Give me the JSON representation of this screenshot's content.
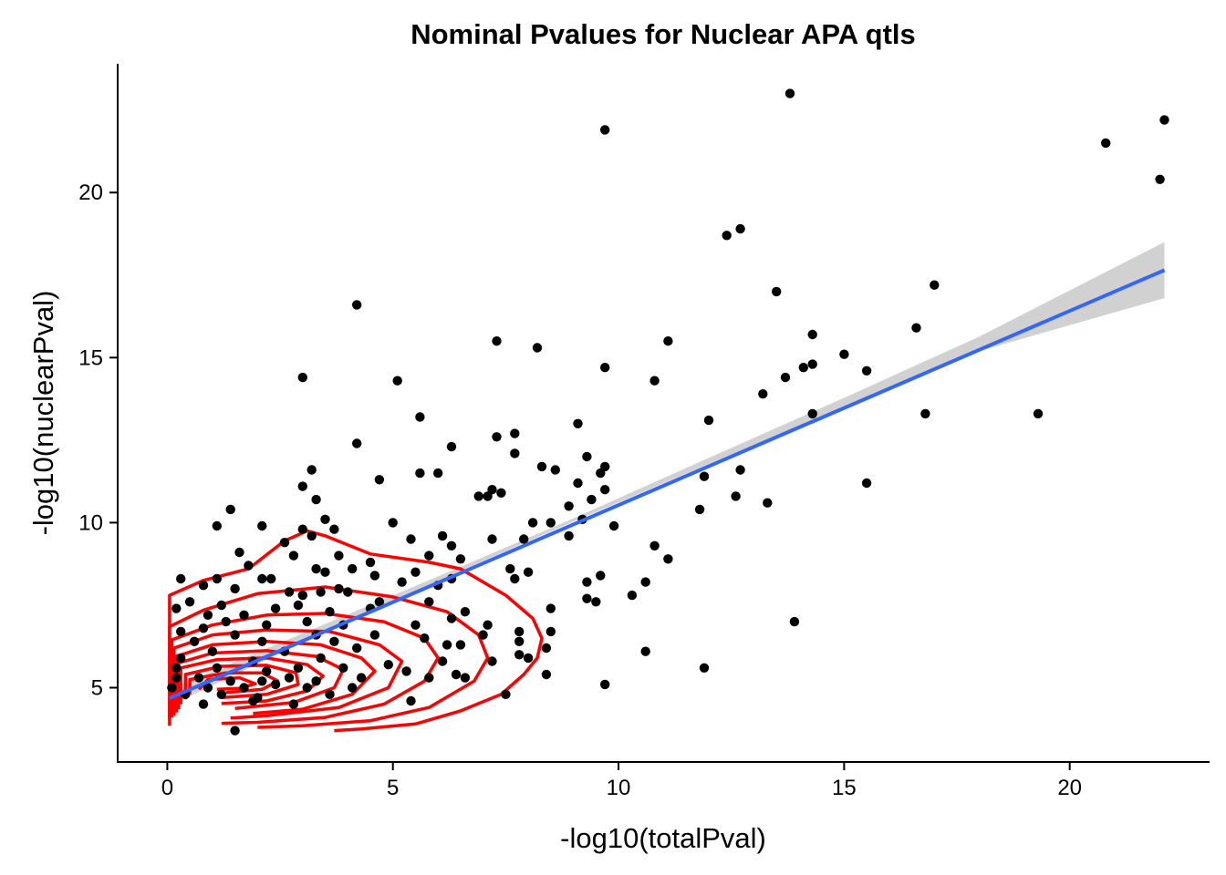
{
  "chart_data": {
    "type": "scatter",
    "title": "Nominal Pvalues for Nuclear APA qtls",
    "xlabel": "-log10(totalPval)",
    "ylabel": "-log10(nuclearPval)",
    "xlim": [
      -1.1,
      23.1
    ],
    "ylim": [
      2.75,
      23.9
    ],
    "xticks": [
      0,
      5,
      10,
      15,
      20
    ],
    "yticks": [
      5,
      10,
      15,
      20
    ],
    "grid": false,
    "legend": "none",
    "colors": {
      "points": "#000000",
      "fit_line": "#3366FF",
      "confidence_band": "#CCCCCC",
      "density_contours": "#FF0000"
    },
    "series": [
      {
        "type": "scatter",
        "points": [
          [
            13.8,
            23
          ],
          [
            9.7,
            21.9
          ],
          [
            22.1,
            22.2
          ],
          [
            20.8,
            21.5
          ],
          [
            22,
            20.4
          ],
          [
            12.7,
            18.9
          ],
          [
            12.4,
            18.7
          ],
          [
            17,
            17.2
          ],
          [
            13.5,
            17
          ],
          [
            4.2,
            16.6
          ],
          [
            16.6,
            15.9
          ],
          [
            14.3,
            15.7
          ],
          [
            7.3,
            15.5
          ],
          [
            11.1,
            15.5
          ],
          [
            8.2,
            15.3
          ],
          [
            15,
            15.1
          ],
          [
            14.3,
            14.8
          ],
          [
            14.1,
            14.7
          ],
          [
            9.7,
            14.7
          ],
          [
            15.5,
            14.6
          ],
          [
            13.7,
            14.4
          ],
          [
            3,
            14.4
          ],
          [
            5.1,
            14.3
          ],
          [
            10.8,
            14.3
          ],
          [
            13.2,
            13.9
          ],
          [
            5.6,
            13.2
          ],
          [
            14.3,
            13.3
          ],
          [
            16.8,
            13.3
          ],
          [
            19.3,
            13.3
          ],
          [
            12,
            13.1
          ],
          [
            9.1,
            13
          ],
          [
            7.7,
            12.7
          ],
          [
            7.3,
            12.6
          ],
          [
            4.2,
            12.4
          ],
          [
            6.3,
            12.3
          ],
          [
            7.7,
            12.1
          ],
          [
            9.3,
            12
          ],
          [
            8.3,
            11.7
          ],
          [
            9.7,
            11.7
          ],
          [
            3.2,
            11.6
          ],
          [
            8.6,
            11.6
          ],
          [
            9.6,
            11.5
          ],
          [
            5.6,
            11.5
          ],
          [
            6,
            11.5
          ],
          [
            12.7,
            11.6
          ],
          [
            11.9,
            11.4
          ],
          [
            4.7,
            11.3
          ],
          [
            9.1,
            11.2
          ],
          [
            15.5,
            11.2
          ],
          [
            3,
            11.1
          ],
          [
            7.2,
            11
          ],
          [
            9.7,
            11
          ],
          [
            7.4,
            10.9
          ],
          [
            12.6,
            10.8
          ],
          [
            6.9,
            10.8
          ],
          [
            7.1,
            10.8
          ],
          [
            3.3,
            10.7
          ],
          [
            9.4,
            10.7
          ],
          [
            8.9,
            10.5
          ],
          [
            11.8,
            10.4
          ],
          [
            1.4,
            10.4
          ],
          [
            13.3,
            10.6
          ],
          [
            3.5,
            10.1
          ],
          [
            5,
            10
          ],
          [
            8.5,
            10
          ],
          [
            8.1,
            10
          ],
          [
            9.2,
            10.1
          ],
          [
            9.9,
            9.9
          ],
          [
            1.1,
            9.9
          ],
          [
            2.1,
            9.9
          ],
          [
            3.7,
            9.8
          ],
          [
            3,
            9.8
          ],
          [
            3.2,
            9.6
          ],
          [
            6.1,
            9.6
          ],
          [
            7.2,
            9.5
          ],
          [
            7.9,
            9.5
          ],
          [
            8.9,
            9.6
          ],
          [
            2.6,
            9.4
          ],
          [
            5.4,
            9.5
          ],
          [
            6.3,
            9.3
          ],
          [
            10.8,
            9.3
          ],
          [
            2.8,
            9
          ],
          [
            1.6,
            9.1
          ],
          [
            3.8,
            9
          ],
          [
            5.8,
            9
          ],
          [
            4.5,
            8.8
          ],
          [
            11.1,
            8.9
          ],
          [
            6.5,
            8.9
          ],
          [
            1.8,
            8.7
          ],
          [
            3.3,
            8.6
          ],
          [
            4.1,
            8.6
          ],
          [
            5.5,
            8.5
          ],
          [
            9.6,
            8.4
          ],
          [
            3.5,
            8.5
          ],
          [
            8,
            8.5
          ],
          [
            1.1,
            8.3
          ],
          [
            0.3,
            8.3
          ],
          [
            2.1,
            8.3
          ],
          [
            2.3,
            8.3
          ],
          [
            4.6,
            8.4
          ],
          [
            6.3,
            8.3
          ],
          [
            7.7,
            8.3
          ],
          [
            9.3,
            8.2
          ],
          [
            10.6,
            8.2
          ],
          [
            0.8,
            8.1
          ],
          [
            3.8,
            8
          ],
          [
            1.5,
            8
          ],
          [
            2.7,
            7.9
          ],
          [
            3.4,
            7.9
          ],
          [
            4,
            7.9
          ],
          [
            5.2,
            8.2
          ],
          [
            6,
            8.1
          ],
          [
            7.6,
            8.6
          ],
          [
            9.3,
            7.7
          ],
          [
            10.3,
            7.8
          ],
          [
            3,
            7.8
          ],
          [
            4.7,
            7.6
          ],
          [
            0.5,
            7.6
          ],
          [
            1.2,
            7.5
          ],
          [
            2.9,
            7.5
          ],
          [
            5.8,
            7.6
          ],
          [
            9.5,
            7.6
          ],
          [
            0.2,
            7.4
          ],
          [
            0.9,
            7.2
          ],
          [
            1.7,
            7.2
          ],
          [
            2.4,
            7.4
          ],
          [
            3.6,
            7.3
          ],
          [
            4.5,
            7.4
          ],
          [
            6.6,
            7.3
          ],
          [
            8.5,
            7.4
          ],
          [
            1.3,
            7
          ],
          [
            3.1,
            7
          ],
          [
            5.5,
            6.9
          ],
          [
            0.8,
            6.8
          ],
          [
            2.2,
            6.9
          ],
          [
            3.9,
            6.9
          ],
          [
            6.3,
            7.1
          ],
          [
            7.1,
            6.9
          ],
          [
            8.5,
            6.7
          ],
          [
            13.9,
            7
          ],
          [
            0.3,
            6.7
          ],
          [
            1.5,
            6.6
          ],
          [
            3.3,
            6.6
          ],
          [
            4.6,
            6.6
          ],
          [
            5.7,
            6.5
          ],
          [
            7,
            6.6
          ],
          [
            7.8,
            6.7
          ],
          [
            0.6,
            6.4
          ],
          [
            2.1,
            6.4
          ],
          [
            3.7,
            6.4
          ],
          [
            6.2,
            6.3
          ],
          [
            7.8,
            6.4
          ],
          [
            8.4,
            6.2
          ],
          [
            1,
            6.1
          ],
          [
            2.6,
            6.1
          ],
          [
            4.2,
            6.2
          ],
          [
            6.5,
            6.3
          ],
          [
            10.6,
            6.1
          ],
          [
            7.8,
            6
          ],
          [
            0.3,
            5.9
          ],
          [
            1.9,
            5.8
          ],
          [
            3.4,
            5.9
          ],
          [
            4.9,
            5.7
          ],
          [
            6.1,
            5.8
          ],
          [
            7.2,
            5.8
          ],
          [
            8,
            5.9
          ],
          [
            0.2,
            5.6
          ],
          [
            1.1,
            5.6
          ],
          [
            2.2,
            5.5
          ],
          [
            2.9,
            5.6
          ],
          [
            3.9,
            5.6
          ],
          [
            5.3,
            5.5
          ],
          [
            6.4,
            5.4
          ],
          [
            8.4,
            5.4
          ],
          [
            11.9,
            5.6
          ],
          [
            0.2,
            5.3
          ],
          [
            0.7,
            5.3
          ],
          [
            1.4,
            5.2
          ],
          [
            2.1,
            5.2
          ],
          [
            2.7,
            5.3
          ],
          [
            3.3,
            5.2
          ],
          [
            4.3,
            5.3
          ],
          [
            5.8,
            5.3
          ],
          [
            6.6,
            5.3
          ],
          [
            0.1,
            5
          ],
          [
            0.9,
            5
          ],
          [
            1.7,
            5
          ],
          [
            2.4,
            5.1
          ],
          [
            3.1,
            5
          ],
          [
            4.1,
            5
          ],
          [
            9.7,
            5.1
          ],
          [
            0.4,
            4.8
          ],
          [
            1.2,
            4.8
          ],
          [
            2,
            4.7
          ],
          [
            3.6,
            4.8
          ],
          [
            5.4,
            4.6
          ],
          [
            7.5,
            4.8
          ],
          [
            0.8,
            4.5
          ],
          [
            1.9,
            4.6
          ],
          [
            2.8,
            4.5
          ],
          [
            1.5,
            3.7
          ]
        ]
      },
      {
        "type": "line",
        "name": "",
        "x": [
          0.05,
          22.1
        ],
        "y": [
          4.68,
          17.65
        ]
      },
      {
        "type": "band",
        "x": [
          0.05,
          4,
          6.5,
          9,
          12,
          15,
          18,
          22.1
        ],
        "lower": [
          4.45,
          7.02,
          8.54,
          10.03,
          11.78,
          13.5,
          15.2,
          16.8
        ],
        "upper": [
          4.95,
          7.22,
          8.66,
          10.13,
          11.96,
          13.78,
          15.64,
          18.5
        ]
      }
    ],
    "contours": [
      [
        [
          0.05,
          3.85
        ],
        [
          0.05,
          7.8
        ],
        [
          0.8,
          8.25
        ],
        [
          1.8,
          8.6
        ],
        [
          2.6,
          9.45
        ],
        [
          3.1,
          9.75
        ],
        [
          3.5,
          9.6
        ],
        [
          4.5,
          9.05
        ],
        [
          5.8,
          8.8
        ],
        [
          6.5,
          8.6
        ],
        [
          7.5,
          7.8
        ],
        [
          8.1,
          7.1
        ],
        [
          8.3,
          6.5
        ],
        [
          8.2,
          5.9
        ],
        [
          7.9,
          5.4
        ],
        [
          7.4,
          4.8
        ],
        [
          6.5,
          4.3
        ],
        [
          5.5,
          3.9
        ],
        [
          4.3,
          3.75
        ],
        [
          3.7,
          3.7
        ]
      ],
      [
        [
          0.05,
          4.05
        ],
        [
          0.05,
          6.85
        ],
        [
          0.8,
          7.35
        ],
        [
          2,
          7.85
        ],
        [
          3.5,
          8.05
        ],
        [
          5,
          7.75
        ],
        [
          6.2,
          7.3
        ],
        [
          6.9,
          6.6
        ],
        [
          7.1,
          5.9
        ],
        [
          6.8,
          5.2
        ],
        [
          5.8,
          4.4
        ],
        [
          4.5,
          4
        ],
        [
          3,
          3.85
        ],
        [
          2,
          3.8
        ]
      ],
      [
        [
          0.1,
          4.1
        ],
        [
          0.1,
          6.45
        ],
        [
          1,
          6.9
        ],
        [
          2.2,
          7.2
        ],
        [
          3.5,
          7.25
        ],
        [
          4.8,
          7.0
        ],
        [
          5.7,
          6.5
        ],
        [
          6.0,
          5.9
        ],
        [
          5.7,
          5.2
        ],
        [
          4.8,
          4.5
        ],
        [
          3.5,
          4.1
        ],
        [
          2,
          3.95
        ],
        [
          1.2,
          3.92
        ]
      ],
      [
        [
          0.15,
          4.15
        ],
        [
          0.15,
          6.2
        ],
        [
          1,
          6.6
        ],
        [
          2.2,
          6.75
        ],
        [
          3.6,
          6.7
        ],
        [
          4.7,
          6.3
        ],
        [
          5.2,
          5.8
        ],
        [
          4.9,
          5.0
        ],
        [
          3.8,
          4.4
        ],
        [
          2.2,
          4.15
        ],
        [
          1.4,
          4.08
        ]
      ],
      [
        [
          0.2,
          4.25
        ],
        [
          0.2,
          5.95
        ],
        [
          1,
          6.3
        ],
        [
          2.2,
          6.4
        ],
        [
          3.4,
          6.3
        ],
        [
          4.3,
          5.9
        ],
        [
          4.6,
          5.5
        ],
        [
          4.1,
          4.8
        ],
        [
          3,
          4.35
        ],
        [
          1.9,
          4.22
        ]
      ],
      [
        [
          0.25,
          4.35
        ],
        [
          0.25,
          5.75
        ],
        [
          1,
          6.05
        ],
        [
          2.2,
          6.12
        ],
        [
          3.3,
          5.95
        ],
        [
          3.9,
          5.55
        ],
        [
          3.7,
          5.0
        ],
        [
          2.8,
          4.55
        ],
        [
          1.5,
          4.37
        ]
      ],
      [
        [
          0.3,
          4.5
        ],
        [
          0.3,
          5.6
        ],
        [
          1.1,
          5.85
        ],
        [
          2.2,
          5.9
        ],
        [
          3.1,
          5.7
        ],
        [
          3.45,
          5.35
        ],
        [
          3.1,
          4.9
        ],
        [
          2.2,
          4.6
        ],
        [
          1.2,
          4.52
        ]
      ],
      [
        [
          0.4,
          4.65
        ],
        [
          0.4,
          5.4
        ],
        [
          1.2,
          5.65
        ],
        [
          2.2,
          5.68
        ],
        [
          2.85,
          5.45
        ],
        [
          2.9,
          5.1
        ],
        [
          2.2,
          4.8
        ],
        [
          1.2,
          4.7
        ]
      ],
      [
        [
          0.5,
          4.8
        ],
        [
          0.5,
          5.25
        ],
        [
          1.3,
          5.45
        ],
        [
          2.1,
          5.45
        ],
        [
          2.45,
          5.2
        ],
        [
          2.1,
          4.95
        ],
        [
          1.3,
          4.85
        ]
      ],
      [
        [
          0.7,
          4.95
        ],
        [
          0.9,
          5.25
        ],
        [
          1.6,
          5.3
        ],
        [
          1.95,
          5.12
        ],
        [
          1.6,
          4.98
        ],
        [
          1.1,
          4.95
        ]
      ]
    ]
  }
}
